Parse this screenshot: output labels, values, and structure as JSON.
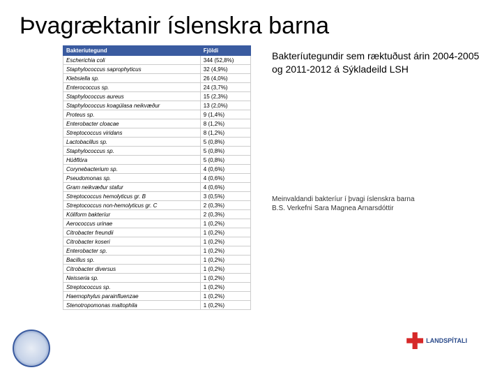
{
  "title": "Þvagræktanir íslenskra barna",
  "table": {
    "headers": [
      "Bakteríutegund",
      "Fjöldi"
    ],
    "rows": [
      [
        "Escherichia coli",
        "344 (52,8%)"
      ],
      [
        "Staphylococcus saprophyticus",
        "32 (4,9%)"
      ],
      [
        "Klebsiella sp.",
        "26 (4,0%)"
      ],
      [
        "Enterococcus sp.",
        "24 (3,7%)"
      ],
      [
        "Staphylococcus aureus",
        "15 (2,3%)"
      ],
      [
        "Staphylococcus koagúlasa neikvæður",
        "13 (2,0%)"
      ],
      [
        "Proteus sp.",
        "9 (1,4%)"
      ],
      [
        "Enterobacter cloacae",
        "8 (1,2%)"
      ],
      [
        "Streptococcus viridans",
        "8 (1,2%)"
      ],
      [
        "Lactobacillus sp.",
        "5 (0,8%)"
      ],
      [
        "Staphylococcus sp.",
        "5 (0,8%)"
      ],
      [
        "Húðflóra",
        "5 (0,8%)"
      ],
      [
        "Corynebacterium sp.",
        "4 (0,6%)"
      ],
      [
        "Pseudomonas sp.",
        "4 (0,6%)"
      ],
      [
        "Gram neikvæður stafur",
        "4 (0,6%)"
      ],
      [
        "Streptococcus hemolyticus gr. B",
        "3 (0,5%)"
      ],
      [
        "Streptococcus non-hemolyticus gr. C",
        "2 (0,3%)"
      ],
      [
        "Kóliform bakteríur",
        "2 (0,3%)"
      ],
      [
        "Aerococcus urinae",
        "1 (0,2%)"
      ],
      [
        "Citrobacter freundii",
        "1 (0,2%)"
      ],
      [
        "Citrobacter koseri",
        "1 (0,2%)"
      ],
      [
        "Enterobacter sp.",
        "1 (0,2%)"
      ],
      [
        "Bacillus sp.",
        "1 (0,2%)"
      ],
      [
        "Citrobacter diversus",
        "1 (0,2%)"
      ],
      [
        "Neisseria sp.",
        "1 (0,2%)"
      ],
      [
        "Streptococcus sp.",
        "1 (0,2%)"
      ],
      [
        "Haemophylus parainfluenzae",
        "1 (0,2%)"
      ],
      [
        "Stenotropomonas maltophila",
        "1 (0,2%)"
      ]
    ]
  },
  "side_main": "Bakteríutegundir sem ræktuðust árin 2004-2005 og 2011-2012 á Sýkladeild LSH",
  "side_cite": "Meinvaldandi bakteríur í þvagi íslenskra barna\nB.S. Verkefni Sara Magnea Arnarsdóttir",
  "logo_right_text": "LANDSPÍTALI"
}
